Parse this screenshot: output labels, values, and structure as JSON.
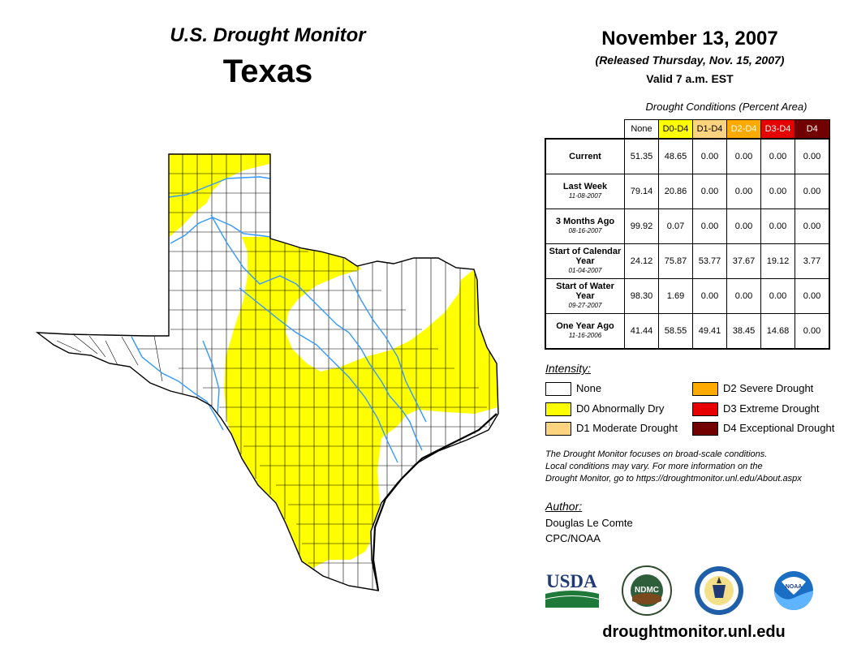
{
  "header": {
    "title": "U.S. Drought Monitor",
    "state": "Texas",
    "date": "November 13, 2007",
    "released": "(Released Thursday, Nov. 15, 2007)",
    "valid": "Valid 7 a.m. EST"
  },
  "table": {
    "title": "Drought Conditions (Percent Area)",
    "columns": [
      {
        "label": "None",
        "color": "#ffffff"
      },
      {
        "label": "D0-D4",
        "color": "#ffff00"
      },
      {
        "label": "D1-D4",
        "color": "#fcd37f"
      },
      {
        "label": "D2-D4",
        "color": "#ffaa00"
      },
      {
        "label": "D3-D4",
        "color": "#e60000"
      },
      {
        "label": "D4",
        "color": "#730000"
      }
    ],
    "rows": [
      {
        "label": "Current",
        "date": "",
        "values": [
          "51.35",
          "48.65",
          "0.00",
          "0.00",
          "0.00",
          "0.00"
        ]
      },
      {
        "label": "Last Week",
        "date": "11-08-2007",
        "values": [
          "79.14",
          "20.86",
          "0.00",
          "0.00",
          "0.00",
          "0.00"
        ]
      },
      {
        "label": "3 Months Ago",
        "date": "08-16-2007",
        "values": [
          "99.92",
          "0.07",
          "0.00",
          "0.00",
          "0.00",
          "0.00"
        ]
      },
      {
        "label": "Start of Calendar Year",
        "date": "01-04-2007",
        "values": [
          "24.12",
          "75.87",
          "53.77",
          "37.67",
          "19.12",
          "3.77"
        ]
      },
      {
        "label": "Start of Water Year",
        "date": "09-27-2007",
        "values": [
          "98.30",
          "1.69",
          "0.00",
          "0.00",
          "0.00",
          "0.00"
        ]
      },
      {
        "label": "One Year Ago",
        "date": "11-16-2006",
        "values": [
          "41.44",
          "58.55",
          "49.41",
          "38.45",
          "14.68",
          "0.00"
        ]
      }
    ]
  },
  "legend": {
    "title": "Intensity:",
    "items": [
      {
        "label": "None",
        "color": "#ffffff"
      },
      {
        "label": "D0 Abnormally Dry",
        "color": "#ffff00"
      },
      {
        "label": "D1 Moderate Drought",
        "color": "#fcd37f"
      },
      {
        "label": "D2 Severe Drought",
        "color": "#ffaa00"
      },
      {
        "label": "D3 Extreme Drought",
        "color": "#e60000"
      },
      {
        "label": "D4 Exceptional Drought",
        "color": "#730000"
      }
    ]
  },
  "note": {
    "line1": "The Drought Monitor focuses on broad-scale conditions.",
    "line2": "Local conditions may vary. For more information on the",
    "line3": "Drought Monitor, go to https://droughtmonitor.unl.edu/About.aspx"
  },
  "author": {
    "title": "Author:",
    "name": "Douglas Le Comte",
    "org": "CPC/NOAA"
  },
  "logos": {
    "usda": "USDA",
    "ndmc": "NDMC",
    "noaa": "NOAA"
  },
  "footer": {
    "site": "droughtmonitor.unl.edu"
  },
  "colors": {
    "d0": "#ffff00",
    "water": "#3399ff",
    "border": "#000000"
  }
}
